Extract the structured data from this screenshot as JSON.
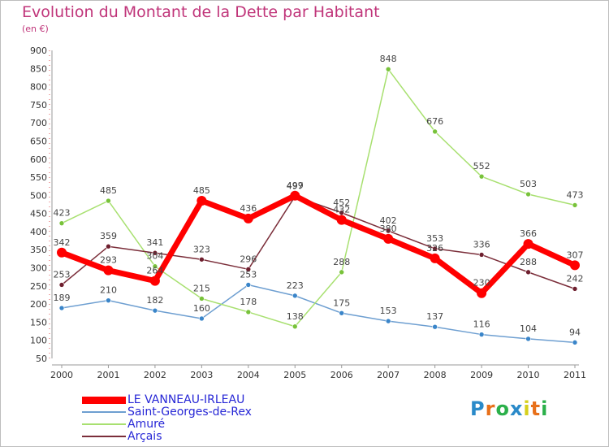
{
  "title": "Evolution du Montant de la Dette par Habitant",
  "subtitle": "(en €)",
  "logo": {
    "text": "Proxiti",
    "letter_colors": [
      "#2a8ac9",
      "#e8701a",
      "#2bb04a",
      "#2a8ac9",
      "#d6d01c",
      "#e8701a",
      "#2bb04a"
    ]
  },
  "chart_data": {
    "type": "line",
    "x": [
      "2000",
      "2001",
      "2002",
      "2003",
      "2004",
      "2005",
      "2006",
      "2007",
      "2008",
      "2009",
      "2010",
      "2011"
    ],
    "ylim": [
      50,
      900
    ],
    "yticks": [
      50,
      100,
      150,
      200,
      250,
      300,
      350,
      400,
      450,
      500,
      550,
      600,
      650,
      700,
      750,
      800,
      850,
      900
    ],
    "grid": false,
    "legend_position": "bottom-left",
    "series": [
      {
        "name": "LE VANNEAU-IRLEAU",
        "color": "#ff0000",
        "emphasis": true,
        "values": [
          342,
          293,
          264,
          485,
          436,
          499,
          432,
          380,
          326,
          230,
          366,
          307
        ],
        "labels": [
          "342",
          "293",
          "264",
          "485",
          "436",
          "499",
          "432",
          "380",
          "326",
          "230",
          "366",
          "307"
        ]
      },
      {
        "name": "Saint-Georges-de-Rex",
        "color": "#6e9fd1",
        "marker": "#3a85c9",
        "values": [
          189,
          210,
          182,
          160,
          253,
          223,
          175,
          153,
          137,
          116,
          104,
          94
        ],
        "labels": [
          "189",
          "210",
          "182",
          "160",
          "253",
          "223",
          "175",
          "153",
          "137",
          "116",
          "104",
          "94"
        ]
      },
      {
        "name": "Amuré",
        "color": "#a8e070",
        "marker": "#78c23a",
        "values": [
          423,
          485,
          304,
          215,
          178,
          138,
          288,
          848,
          676,
          552,
          503,
          473
        ],
        "labels": [
          "423",
          "485",
          "304",
          "215",
          "178",
          "138",
          "288",
          "848",
          "676",
          "552",
          "503",
          "473"
        ]
      },
      {
        "name": "Arçais",
        "color": "#7b2e3a",
        "marker": "#6e1f2e",
        "values": [
          253,
          359,
          341,
          323,
          296,
          497,
          452,
          402,
          353,
          336,
          288,
          242
        ],
        "labels": [
          "253",
          "359",
          "341",
          "323",
          "296",
          "497",
          "452",
          "402",
          "353",
          "336",
          "288",
          "242"
        ]
      }
    ]
  }
}
